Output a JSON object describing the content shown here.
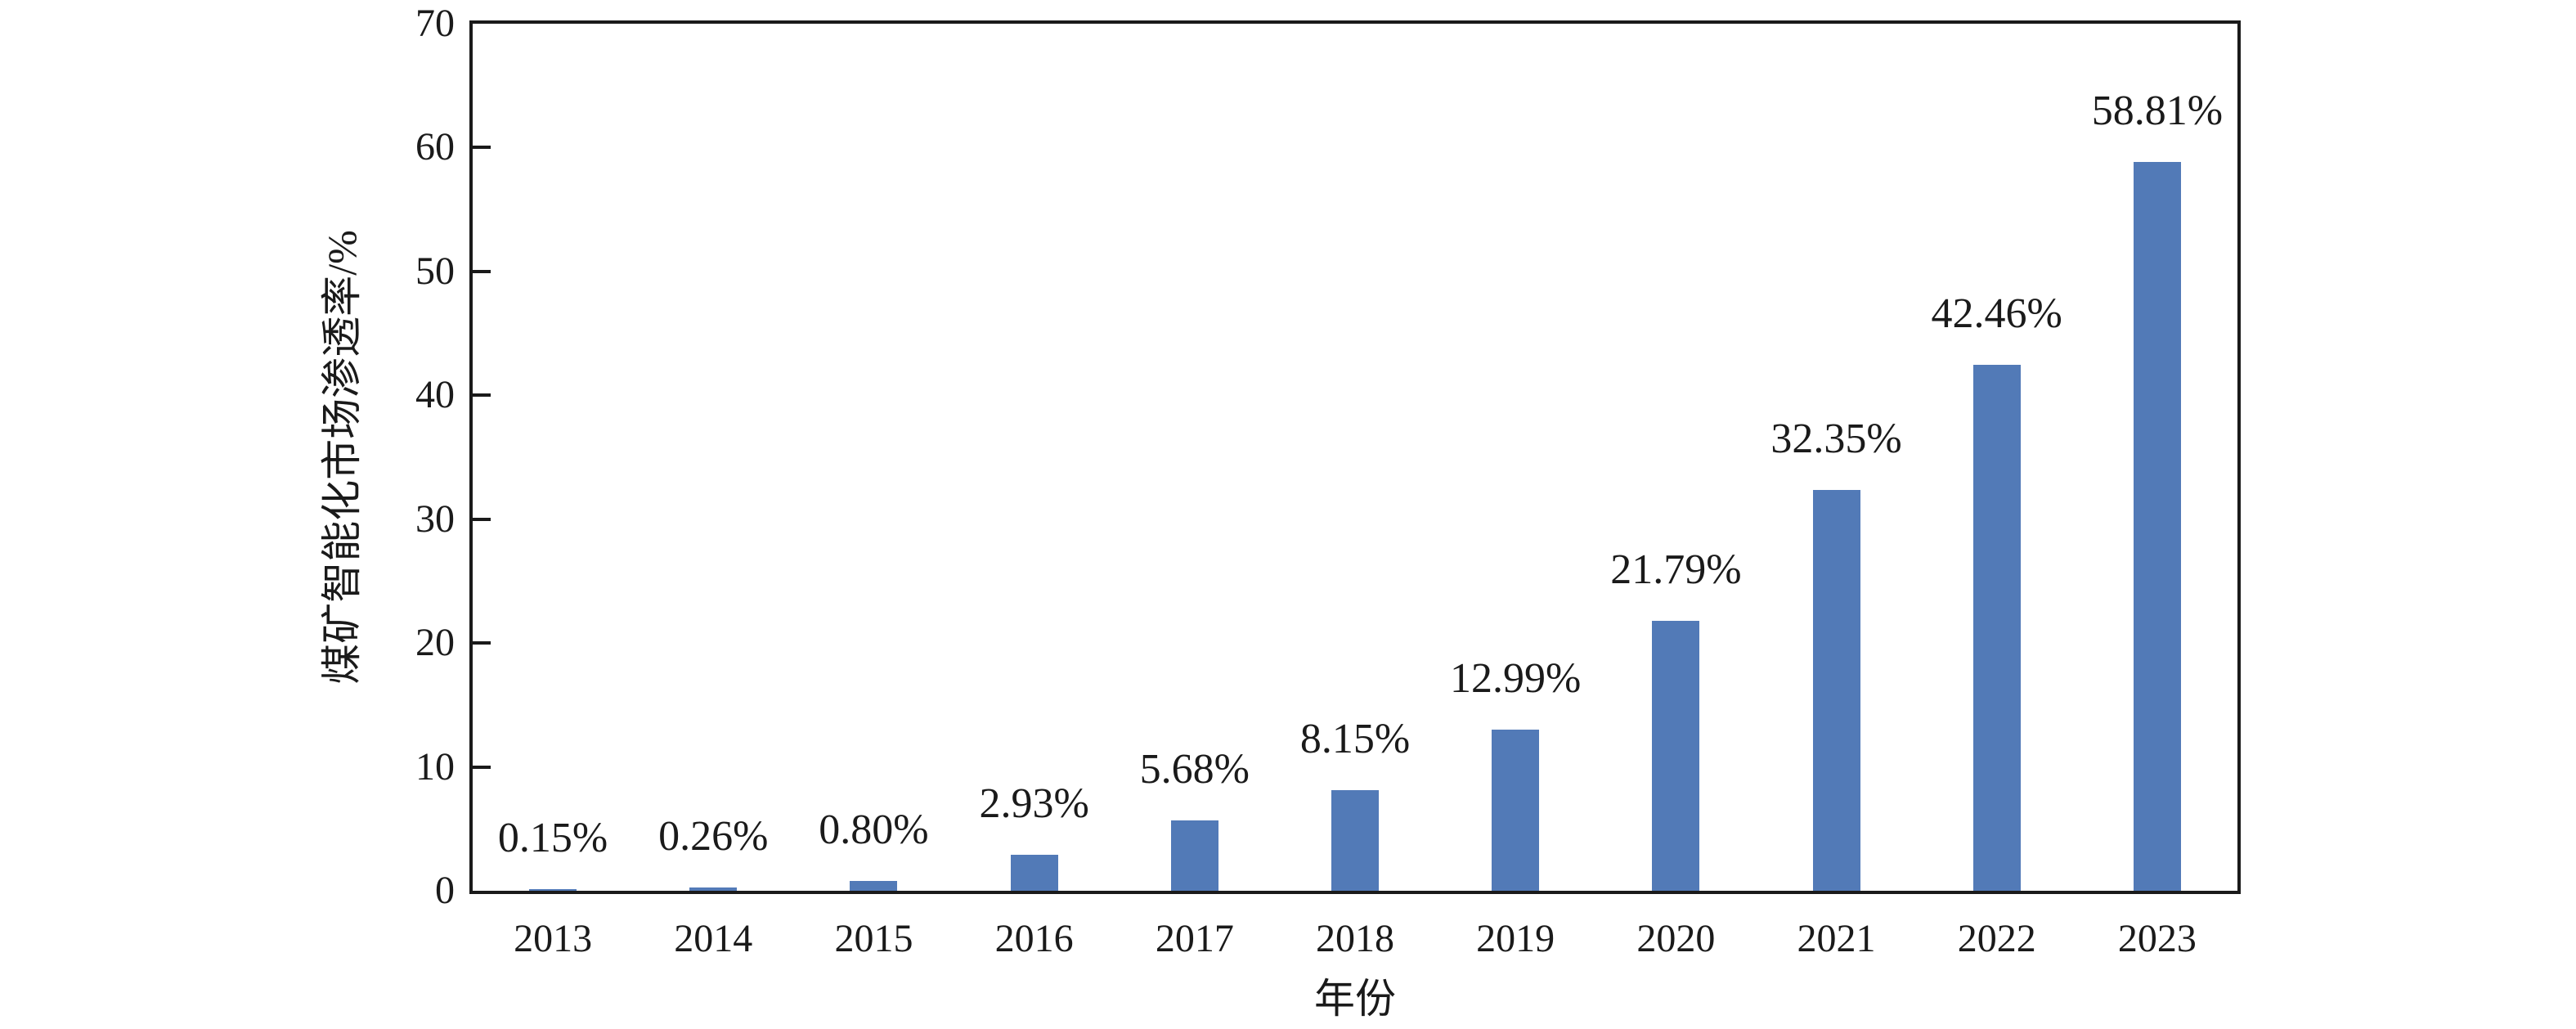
{
  "chart_data": {
    "type": "bar",
    "title": "",
    "xlabel": "年份",
    "ylabel": "煤矿智能化市场渗透率/%",
    "categories": [
      "2013",
      "2014",
      "2015",
      "2016",
      "2017",
      "2018",
      "2019",
      "2020",
      "2021",
      "2022",
      "2023"
    ],
    "values": [
      0.15,
      0.26,
      0.8,
      2.93,
      5.68,
      8.15,
      12.99,
      21.79,
      32.35,
      42.46,
      58.81
    ],
    "bar_labels": [
      "0.15%",
      "0.26%",
      "0.80%",
      "2.93%",
      "5.68%",
      "8.15%",
      "12.99%",
      "21.79%",
      "32.35%",
      "42.46%",
      "58.81%"
    ],
    "ylim": [
      0,
      70
    ],
    "yticks": [
      0,
      10,
      20,
      30,
      40,
      50,
      60,
      70
    ],
    "grid": false,
    "legend_position": "none",
    "bar_color": "#527AB7",
    "axis_color": "#1a1a1a",
    "background_color": "#ffffff"
  }
}
